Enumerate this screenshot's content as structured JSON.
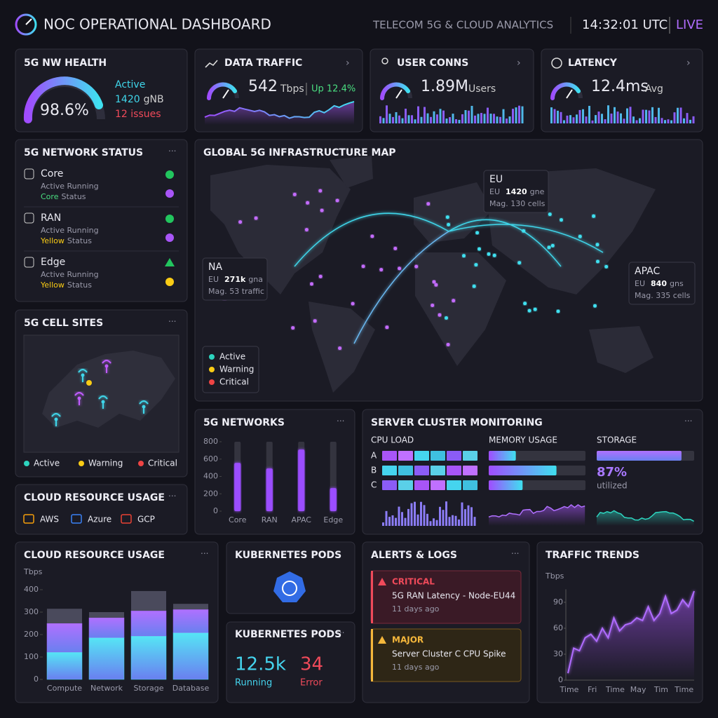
{
  "header": {
    "title": "NOC OPERATIONAL DASHBOARD",
    "subtitle": "TELECOM 5G & CLOUD ANALYTICS",
    "time": "14:32:01 UTC",
    "live": "LIVE"
  },
  "health": {
    "title": "5G NW HEALTH",
    "value": "98.6%",
    "status": "Active",
    "count": "1420",
    "count_unit": "gNB",
    "issues": "12 issues"
  },
  "traffic": {
    "title": "DATA TRAFFIC",
    "value": "542",
    "unit": "Tbps",
    "change": "Up 12.4%"
  },
  "users": {
    "title": "USER CONNS",
    "value": "1.89M",
    "unit": "Users"
  },
  "latency": {
    "title": "LATENCY",
    "value": "12.4ms",
    "unit": "Avg"
  },
  "network_status": {
    "title": "5G NETWORK STATUS",
    "items": [
      {
        "name": "Core",
        "detail": "Active Running",
        "status_word": "Core",
        "status_label": "Status"
      },
      {
        "name": "RAN",
        "detail": "Active Running",
        "status_word": "Yellow",
        "status_label": "Status"
      },
      {
        "name": "Edge",
        "detail": "Active Running",
        "status_word": "Yellow",
        "status_label": "Status"
      }
    ]
  },
  "cell_sites": {
    "title": "5G CELL SITES",
    "legend": [
      "Active",
      "Warning",
      "Critical"
    ]
  },
  "cloud_providers": {
    "title": "CLOUD RESOURCE USAGE",
    "providers": [
      "AWS",
      "Azure",
      "GCP"
    ]
  },
  "map": {
    "title": "GLOBAL 5G INFRASTRUCTURE MAP",
    "callouts": [
      {
        "name": "EU",
        "region": "EU",
        "count": "1420",
        "unit": "gne",
        "detail": "Mag. 130 cells"
      },
      {
        "name": "NA",
        "region": "EU",
        "count": "271k",
        "unit": "gna",
        "detail": "Mag. 53 traffic"
      },
      {
        "name": "APAC",
        "region": "EU",
        "count": "840",
        "unit": "gns",
        "detail": "Mag. 335 cells"
      }
    ],
    "legend": [
      "Active",
      "Warning",
      "Critical"
    ]
  },
  "networks_chart": {
    "type": "bar",
    "title": "5G NETWORKS",
    "categories": [
      "Core",
      "RAN",
      "APAC",
      "Edge"
    ],
    "values": [
      556,
      492,
      710,
      266
    ],
    "color": "#9b4dff",
    "ylim": [
      0,
      800
    ],
    "yticks": [
      0,
      200,
      400,
      600,
      800
    ]
  },
  "server": {
    "title": "SERVER CLUSTER MONITORING",
    "cpu": {
      "title": "CPU LOAD",
      "rows": [
        "A",
        "B",
        "C"
      ]
    },
    "memory": {
      "title": "MEMORY USAGE",
      "values": [
        28,
        70,
        35
      ]
    },
    "storage": {
      "title": "STORAGE",
      "values": [
        87
      ],
      "value_labels": [
        "87%"
      ],
      "caption": "utilized"
    }
  },
  "cloud_chart": {
    "type": "stacked_bar",
    "title": "CLOUD RESOURCE USAGE",
    "unit_label": "Tbps",
    "categories": [
      "Compute",
      "Network",
      "Storage",
      "Database"
    ],
    "series": [
      {
        "color": "#45d4ee",
        "values": [
          122,
          187,
          194,
          209
        ]
      },
      {
        "color": "#9a5cf0",
        "values": [
          128,
          88,
          112,
          103
        ]
      },
      {
        "color": "#4a4a5c",
        "values": [
          65,
          25,
          88,
          25
        ]
      }
    ],
    "ylim": [
      0,
      400
    ],
    "yticks": [
      0,
      100,
      200,
      300,
      400
    ]
  },
  "pods_icon": {
    "title": "KUBERNETES PODS"
  },
  "pods": {
    "title": "KUBERNETES PODS",
    "running": "12.5k",
    "running_label": "Running",
    "error": "34",
    "error_label": "Error"
  },
  "alerts": {
    "title": "ALERTS & LOGS",
    "items": [
      {
        "level": "CRITICAL",
        "message": "5G RAN Latency - Node-EU44",
        "time": "11 days ago"
      },
      {
        "level": "MAJOR",
        "message": "Server Cluster C CPU Spike",
        "time": "11 days ago"
      }
    ]
  },
  "trends_chart": {
    "type": "line",
    "title": "TRAFFIC TRENDS",
    "unit_label": "Tbps",
    "categories": [
      "Time",
      null,
      null,
      null,
      "Fri",
      null,
      null,
      null,
      "Time",
      null,
      null,
      null,
      "May",
      null,
      null,
      null,
      "Tim",
      null,
      null,
      null,
      "Time",
      null,
      null
    ],
    "values": [
      8,
      37,
      34,
      49,
      53,
      45,
      60,
      49,
      72,
      57,
      64,
      66,
      72,
      69,
      85,
      69,
      77,
      97,
      77,
      81,
      93,
      85,
      103
    ],
    "color": "#b06cff",
    "ylim": [
      0,
      105
    ],
    "yticks": [
      0,
      30,
      60,
      90
    ]
  }
}
